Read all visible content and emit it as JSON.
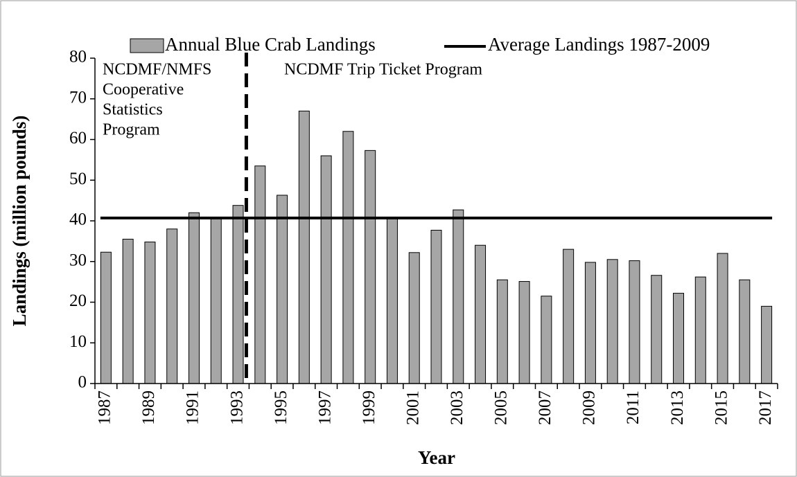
{
  "chart_data": {
    "type": "bar",
    "y_label": "Landings (million pounds)",
    "x_label": "Year",
    "categories": [
      "1987",
      null,
      "1989",
      null,
      "1991",
      null,
      "1993",
      null,
      "1995",
      null,
      "1997",
      null,
      "1999",
      null,
      "2001",
      null,
      "2003",
      null,
      "2005",
      null,
      "2007",
      null,
      "2009",
      null,
      "2011",
      null,
      "2013",
      null,
      "2015",
      null,
      "2017"
    ],
    "series": [
      {
        "name": "Annual Blue Crab Landings",
        "color": "#a6a6a6",
        "values": [
          32.3,
          35.5,
          34.8,
          38.0,
          42.0,
          40.8,
          43.8,
          53.5,
          46.3,
          67.0,
          56.0,
          62.0,
          57.3,
          40.8,
          32.2,
          37.7,
          42.7,
          34.0,
          25.5,
          25.1,
          21.5,
          33.0,
          29.8,
          30.5,
          30.2,
          26.6,
          22.2,
          26.2,
          32.0,
          25.5,
          19.0
        ]
      }
    ],
    "average": {
      "name": "Average Landings 1987-2009",
      "value": 40.7,
      "color": "#000000"
    },
    "annotations": [
      {
        "lines": [
          "NCDMF/NMFS",
          "Cooperative",
          "Statistics",
          "Program"
        ]
      },
      {
        "lines": [
          "NCDMF Trip Ticket Program"
        ]
      }
    ],
    "ylim": [
      0,
      80
    ],
    "yticks": [
      0,
      10,
      20,
      30,
      40,
      50,
      60,
      70,
      80
    ]
  }
}
